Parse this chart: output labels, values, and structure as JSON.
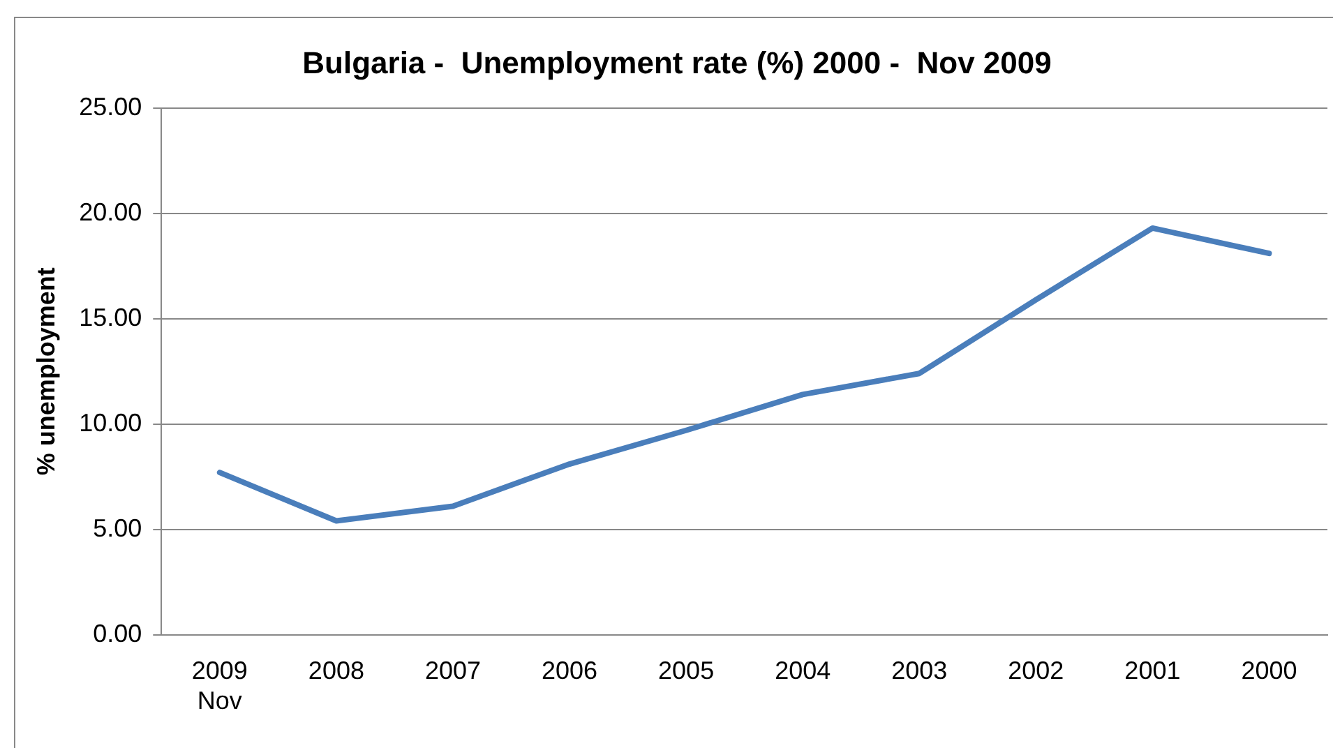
{
  "chart_data": {
    "type": "line",
    "title": "Bulgaria -  Unemployment rate (%) 2000 -  Nov 2009",
    "ylabel": "% unemployment",
    "categories": [
      "2009\nNov",
      "2008",
      "2007",
      "2006",
      "2005",
      "2004",
      "2003",
      "2002",
      "2001",
      "2000"
    ],
    "series": [
      {
        "color": "#4a7ebb",
        "values": [
          7.7,
          5.4,
          6.1,
          8.1,
          9.7,
          11.4,
          12.4,
          15.9,
          19.3,
          18.1
        ]
      }
    ],
    "ylim": [
      0,
      25
    ],
    "yticks": [
      {
        "value": 0,
        "label": "0.00"
      },
      {
        "value": 5,
        "label": "5.00"
      },
      {
        "value": 10,
        "label": "10.00"
      },
      {
        "value": 15,
        "label": "15.00"
      },
      {
        "value": 20,
        "label": "20.00"
      },
      {
        "value": 25,
        "label": "25.00"
      }
    ],
    "grid": "y",
    "legend": false,
    "marker": "none",
    "line_style": "solid"
  }
}
